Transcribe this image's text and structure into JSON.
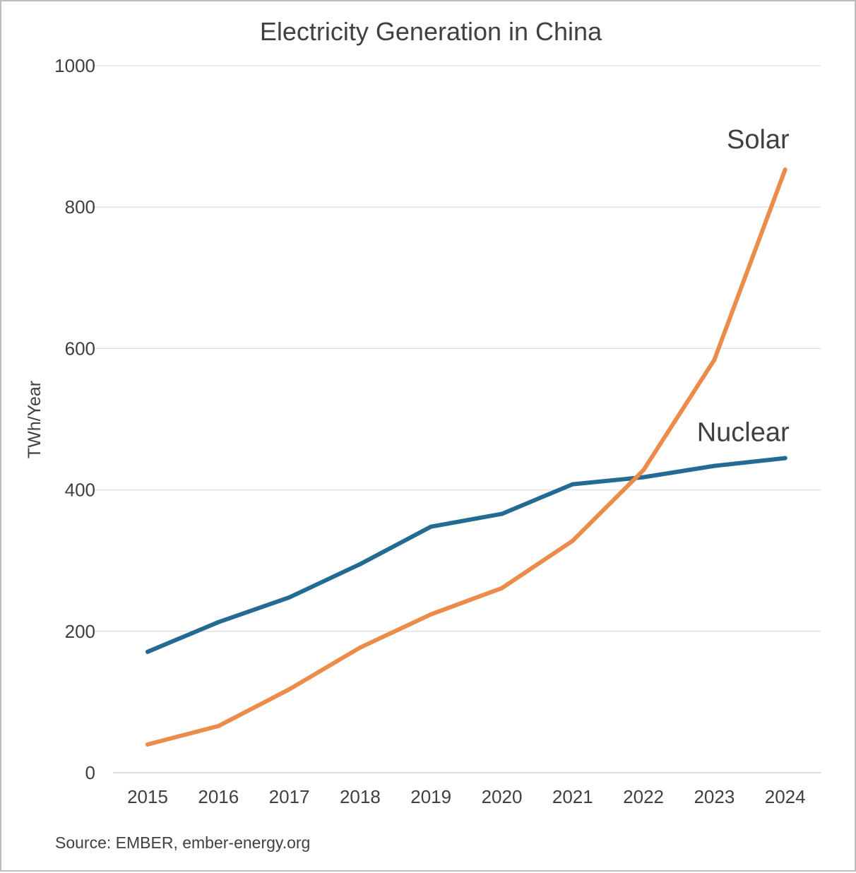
{
  "chart_data": {
    "type": "line",
    "title": "Electricity Generation in China",
    "xlabel": "",
    "ylabel": "TWh/Year",
    "categories": [
      "2015",
      "2016",
      "2017",
      "2018",
      "2019",
      "2020",
      "2021",
      "2022",
      "2023",
      "2024"
    ],
    "ylim": [
      0,
      1000
    ],
    "yticks": [
      0,
      200,
      400,
      600,
      800,
      1000
    ],
    "grid": true,
    "legend": "none",
    "series": [
      {
        "name": "Nuclear",
        "color": "#246b93",
        "values": [
          171,
          213,
          248,
          295,
          348,
          366,
          408,
          418,
          434,
          445
        ]
      },
      {
        "name": "Solar",
        "color": "#ec8c4a",
        "values": [
          40,
          66,
          118,
          177,
          224,
          261,
          328,
          428,
          584,
          853
        ]
      }
    ],
    "annotations": [
      {
        "text": "Solar",
        "series": "Solar",
        "position": "above-end"
      },
      {
        "text": "Nuclear",
        "series": "Nuclear",
        "position": "above-end"
      }
    ],
    "source": "Source: EMBER, ember-energy.org"
  }
}
